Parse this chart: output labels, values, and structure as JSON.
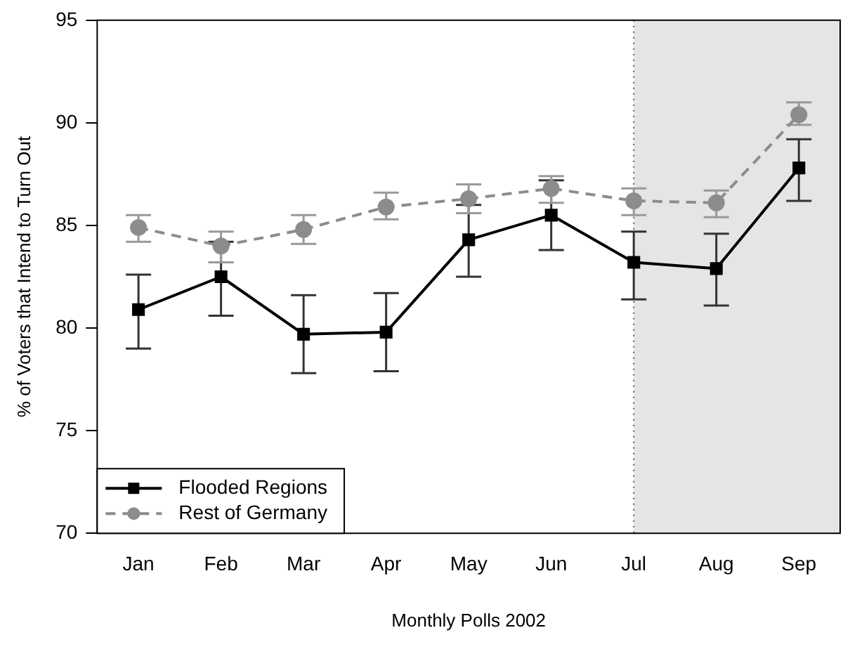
{
  "chart_data": {
    "type": "line",
    "xlabel": "Monthly Polls 2002",
    "ylabel": "% of Voters that Intend to Turn Out",
    "categories": [
      "Jan",
      "Feb",
      "Mar",
      "Apr",
      "May",
      "Jun",
      "Jul",
      "Aug",
      "Sep"
    ],
    "ylim": [
      70,
      95
    ],
    "yticks": [
      70,
      75,
      80,
      85,
      90,
      95
    ],
    "grid": false,
    "legend": "bottom left",
    "series": [
      {
        "name": "Flooded Regions",
        "color": "#000000",
        "marker": "square",
        "line_style": "solid",
        "values": [
          80.9,
          82.5,
          79.7,
          79.8,
          84.3,
          85.5,
          83.2,
          82.9,
          87.8
        ],
        "errors": [
          [
            79.0,
            82.6
          ],
          [
            80.6,
            84.2
          ],
          [
            77.8,
            81.6
          ],
          [
            77.9,
            81.7
          ],
          [
            82.5,
            86.0
          ],
          [
            83.8,
            87.2
          ],
          [
            81.4,
            84.7
          ],
          [
            81.1,
            84.6
          ],
          [
            86.2,
            89.2
          ]
        ]
      },
      {
        "name": "Rest of Germany",
        "color": "#8c8c8c",
        "marker": "circle",
        "line_style": "dashed",
        "values": [
          84.9,
          84.0,
          84.8,
          85.9,
          86.3,
          86.8,
          86.2,
          86.1,
          90.4
        ],
        "errors": [
          [
            84.2,
            85.5
          ],
          [
            83.2,
            84.7
          ],
          [
            84.1,
            85.5
          ],
          [
            85.3,
            86.6
          ],
          [
            85.6,
            87.0
          ],
          [
            86.1,
            87.4
          ],
          [
            85.5,
            86.8
          ],
          [
            85.4,
            86.7
          ],
          [
            89.9,
            91.0
          ]
        ]
      }
    ],
    "bands": [
      {
        "axis": "x",
        "from": "Jul",
        "to": "Sep",
        "color": "#e5e5e5"
      }
    ],
    "ref_lines": [
      {
        "axis": "x",
        "value": "Jul",
        "line_style": "dotted",
        "color": "#555555"
      }
    ]
  }
}
